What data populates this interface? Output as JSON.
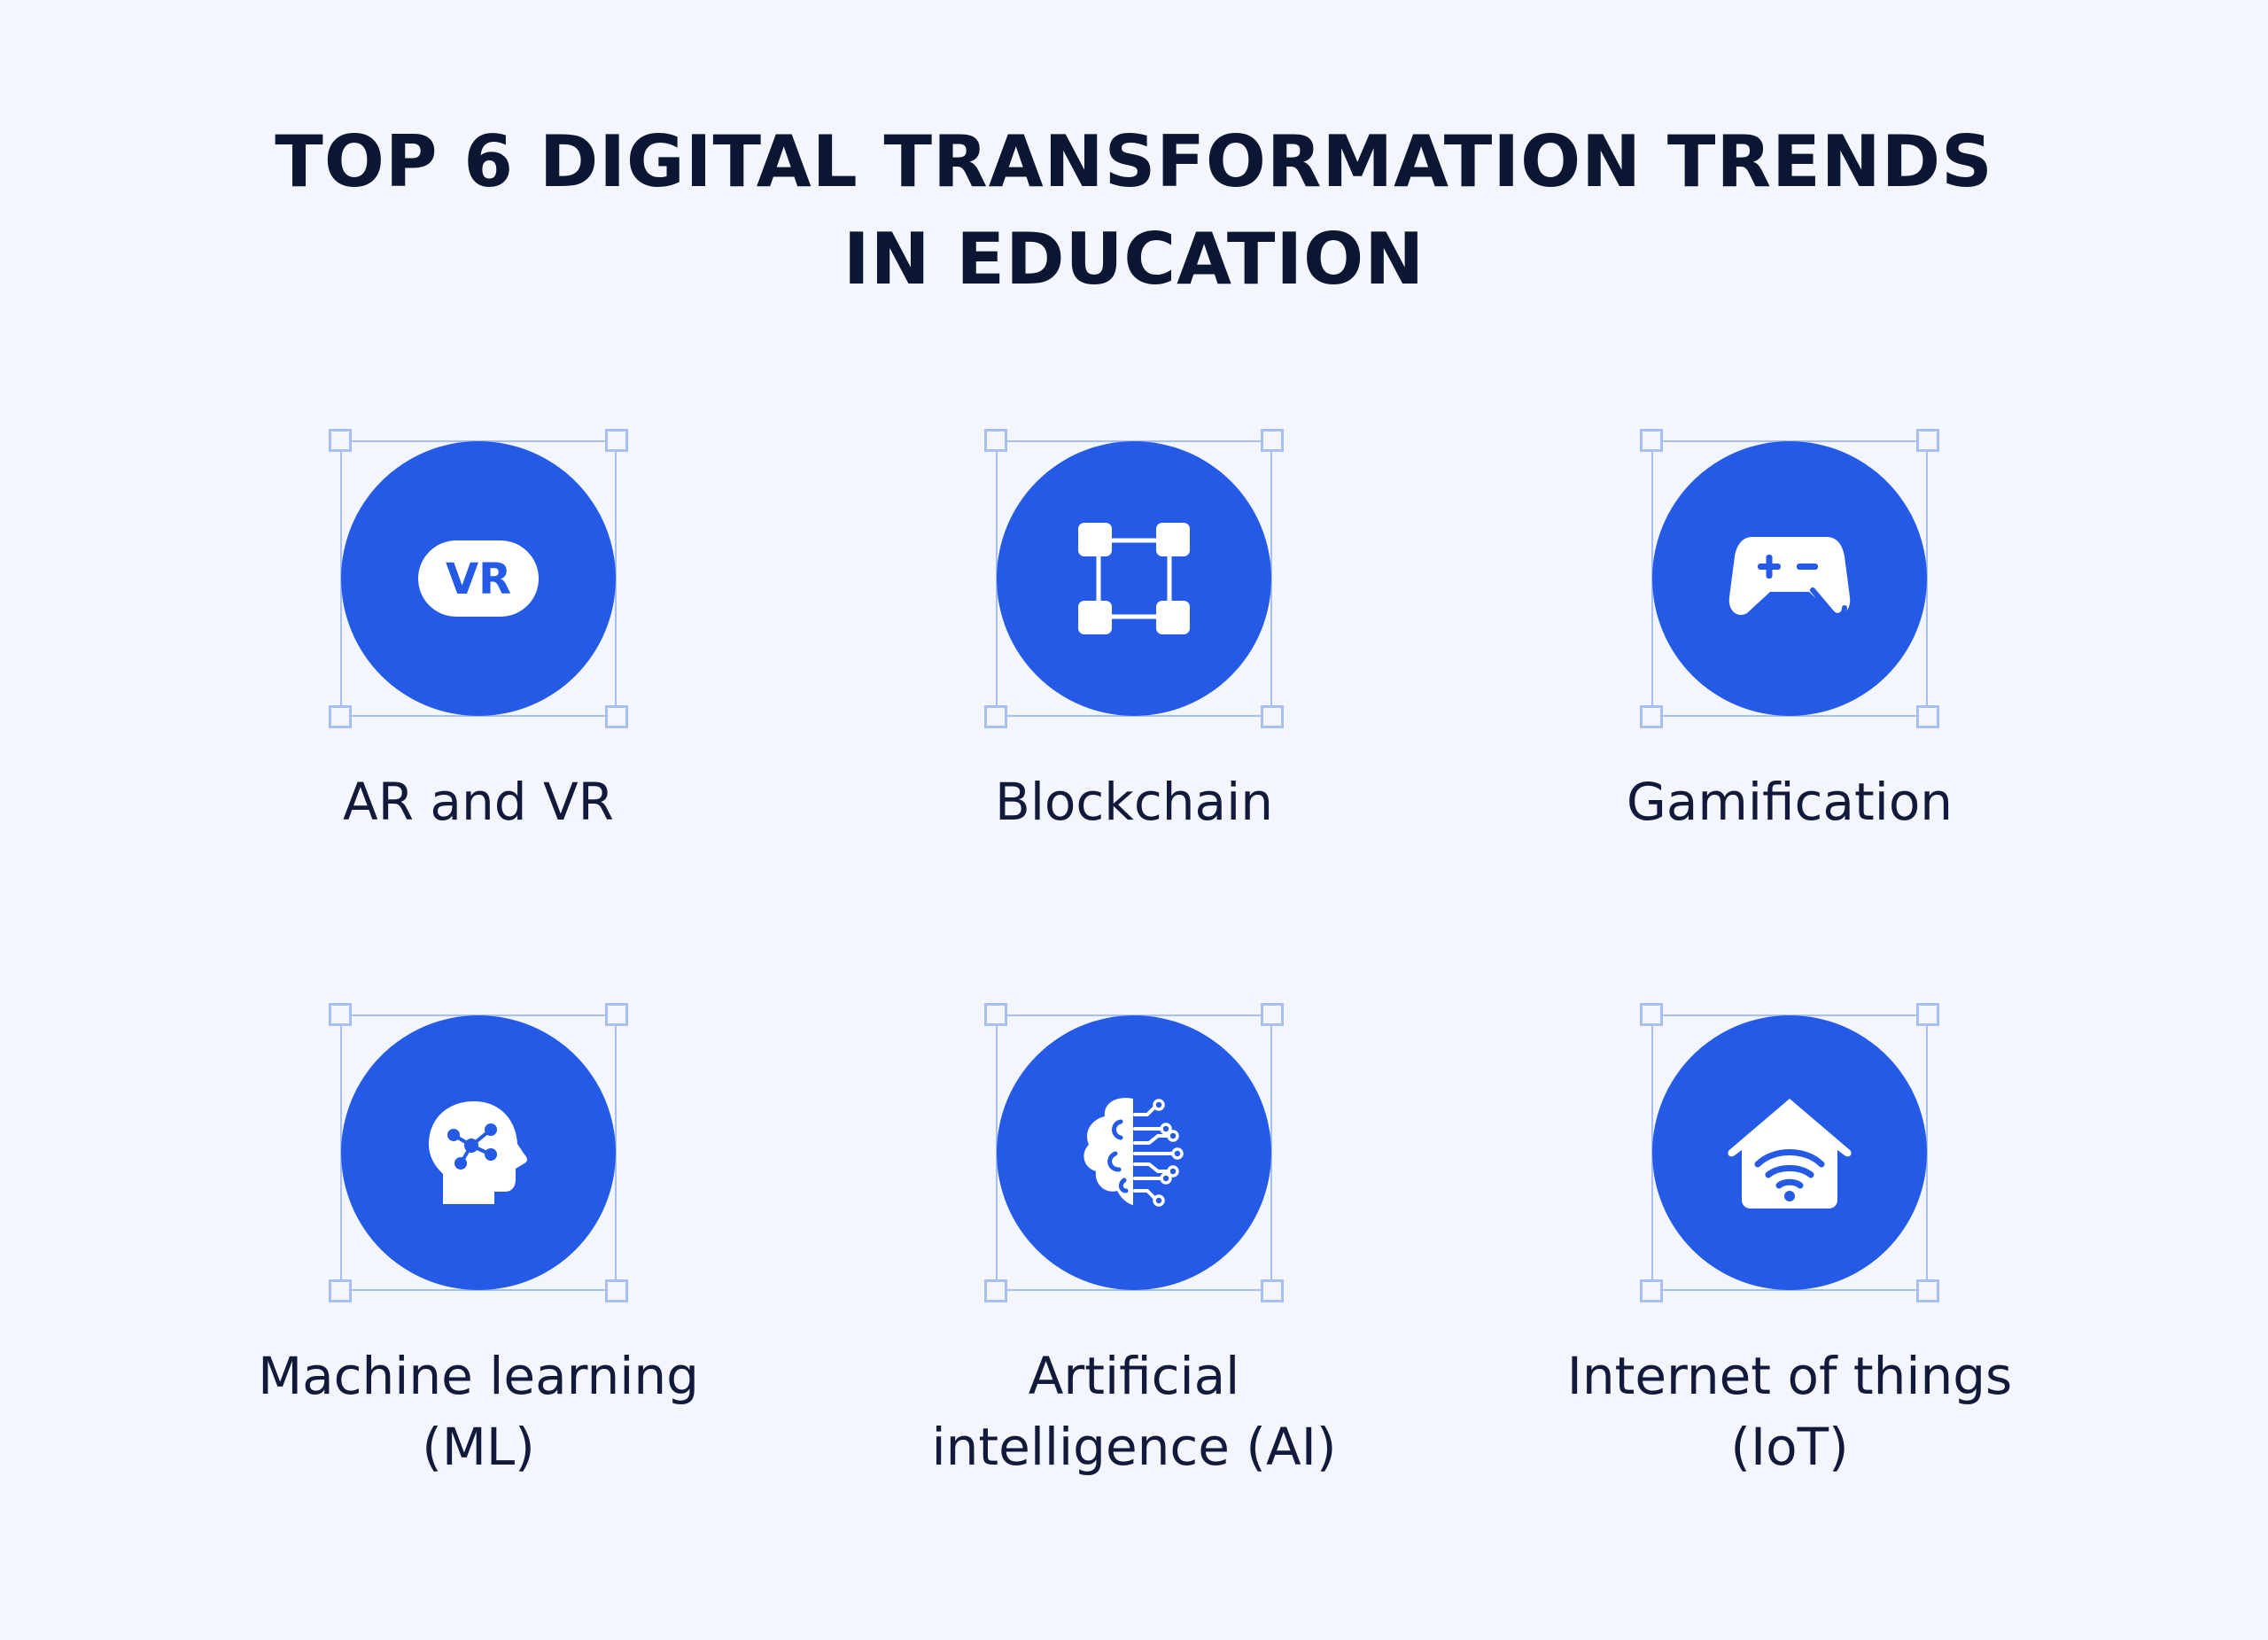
{
  "title": {
    "line1": "TOP 6 DIGITAL TRANSFORMATION TRENDS",
    "line2": "IN EDUCATION"
  },
  "colors": {
    "background": "#f3f6fd",
    "accent": "#245ae6",
    "frame": "#a8bff3",
    "text": "#0b1633"
  },
  "trends": [
    {
      "icon": "vr-headset-icon",
      "badge": "VR",
      "label_line1": "AR and VR",
      "label_line2": ""
    },
    {
      "icon": "blockchain-nodes-icon",
      "label_line1": "Blockchain",
      "label_line2": ""
    },
    {
      "icon": "gamepad-icon",
      "label_line1": "Gamification",
      "label_line2": ""
    },
    {
      "icon": "head-network-icon",
      "label_line1": "Machine learning",
      "label_line2": "(ML)"
    },
    {
      "icon": "brain-circuit-icon",
      "label_line1": "Artificial",
      "label_line2": "intelligence (AI)"
    },
    {
      "icon": "smart-home-wifi-icon",
      "label_line1": "Internet of things",
      "label_line2": "(IoT)"
    }
  ]
}
